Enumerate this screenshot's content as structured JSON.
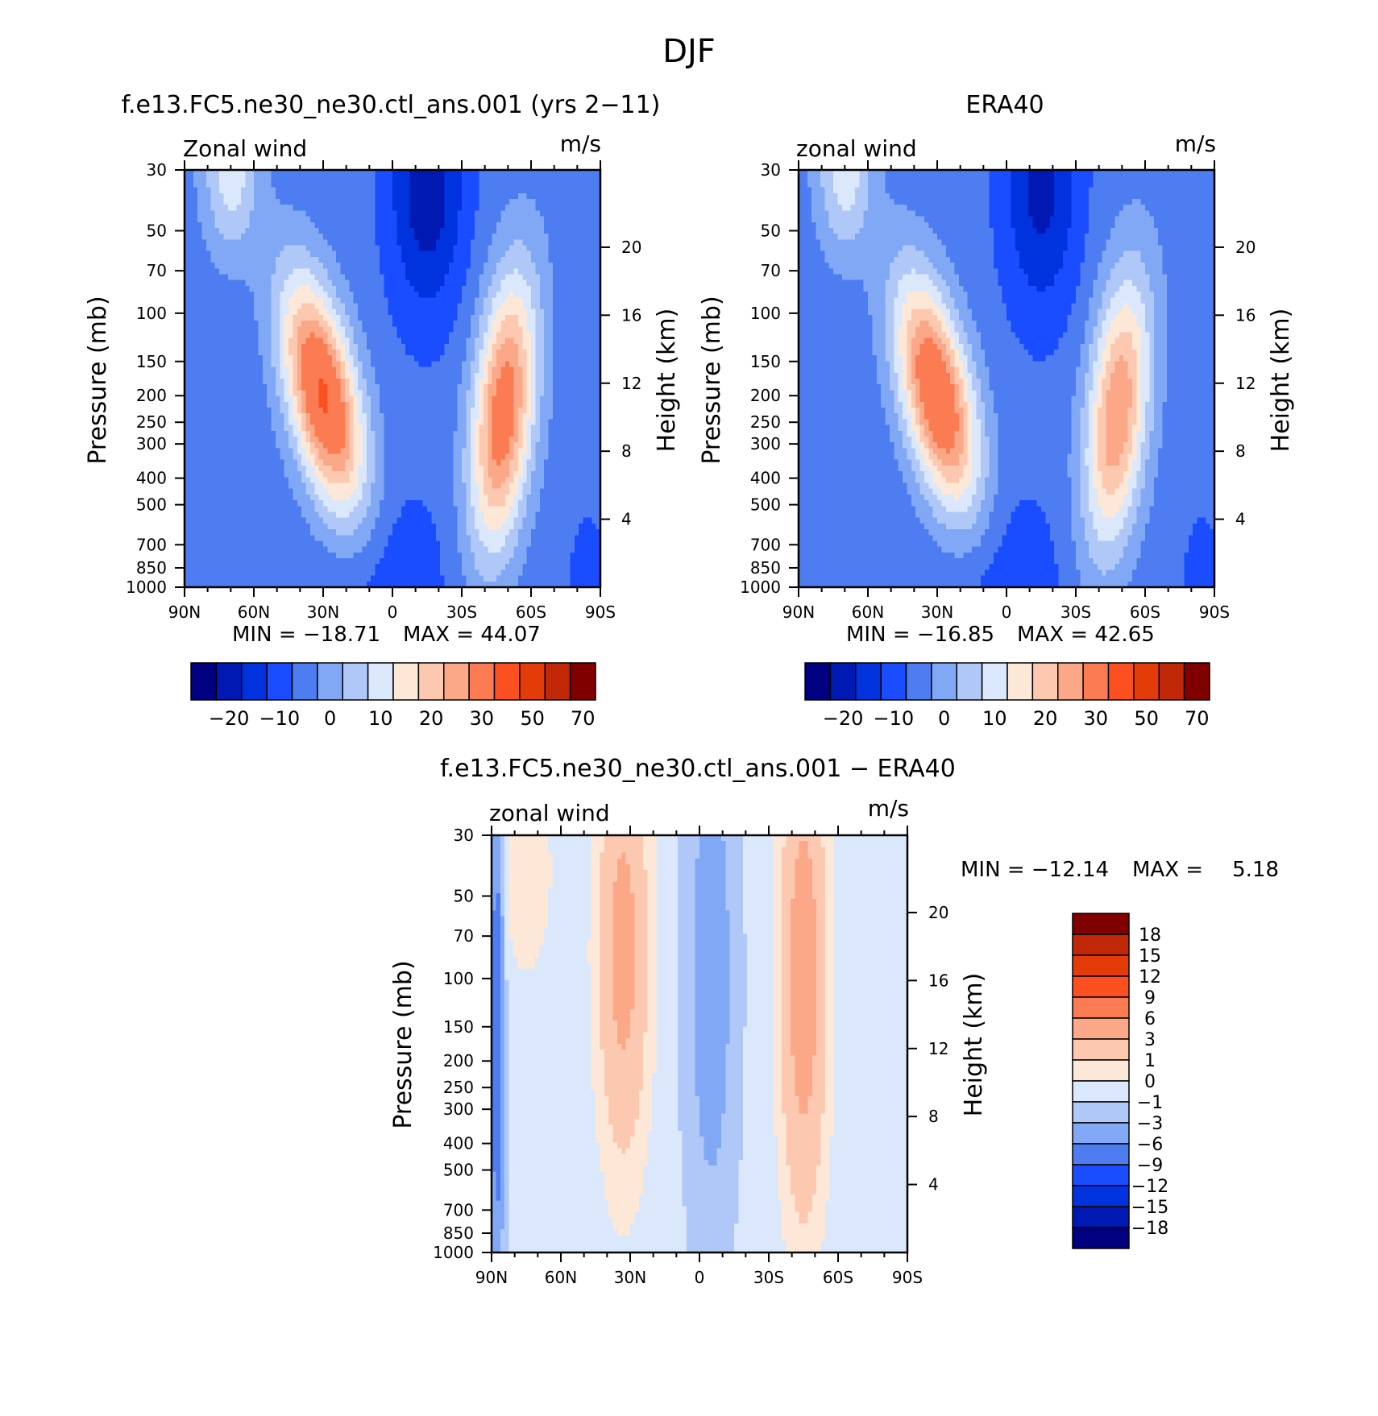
{
  "figure": {
    "title": "DJF",
    "colors": {
      "main_scale": [
        "#000080",
        "#0019b3",
        "#0033dd",
        "#1a4dff",
        "#4d7df0",
        "#80a8f5",
        "#b0c8f8",
        "#dbe8fb",
        "#fde8d8",
        "#fcc8b0",
        "#fba888",
        "#fb7c52",
        "#fd5020",
        "#e43c08",
        "#c02808",
        "#800000"
      ],
      "diff_scale": [
        "#000080",
        "#0019b3",
        "#0033dd",
        "#1a4dff",
        "#4d7df0",
        "#80a8f5",
        "#b0c8f8",
        "#dbe8fb",
        "#fde8d8",
        "#fcc8b0",
        "#fba888",
        "#fb7c52",
        "#fd5020",
        "#e43c08",
        "#c02808",
        "#800000"
      ]
    }
  },
  "chart_data": [
    {
      "type": "heatmap",
      "title": "f.e13.FC5.ne30_ne30.ctl_ans.001 (yrs 2−11)",
      "left_label": "Zonal wind",
      "right_label": "m/s",
      "ylabel": "Pressure (mb)",
      "ylabel_right": "Height (km)",
      "x_ticks": [
        "90N",
        "60N",
        "30N",
        "0",
        "30S",
        "60S",
        "90S"
      ],
      "x_range": [
        90,
        -90
      ],
      "y_ticks": [
        30,
        50,
        70,
        100,
        150,
        200,
        250,
        300,
        400,
        500,
        700,
        850,
        1000
      ],
      "y_range": [
        30,
        1000
      ],
      "y_scale": "log",
      "y_right_ticks": [
        20,
        16,
        12,
        8,
        4
      ],
      "min_label": "MIN = −18.71",
      "max_label": "MAX = 44.07",
      "min": -18.71,
      "max": 44.07,
      "colorbar": {
        "orientation": "horizontal",
        "levels": [
          -25,
          -20,
          -15,
          -10,
          -5,
          0,
          5,
          10,
          15,
          20,
          25,
          30,
          40,
          50,
          60,
          70
        ],
        "labels": [
          "−20",
          "−10",
          "0",
          "10",
          "20",
          "30",
          "50",
          "70"
        ]
      },
      "jets": [
        {
          "lat": 30,
          "p": 200,
          "max": 44
        },
        {
          "lat": -48,
          "p": 230,
          "max": 38
        }
      ],
      "easterly_min": {
        "lat": -15,
        "p": 35,
        "value": -18.7
      }
    },
    {
      "type": "heatmap",
      "title": "ERA40",
      "left_label": "zonal wind",
      "right_label": "m/s",
      "ylabel": "Pressure (mb)",
      "ylabel_right": "Height (km)",
      "x_ticks": [
        "90N",
        "60N",
        "30N",
        "0",
        "30S",
        "60S",
        "90S"
      ],
      "x_range": [
        90,
        -90
      ],
      "y_ticks": [
        30,
        50,
        70,
        100,
        150,
        200,
        250,
        300,
        400,
        500,
        700,
        850,
        1000
      ],
      "y_range": [
        30,
        1000
      ],
      "y_scale": "log",
      "y_right_ticks": [
        20,
        16,
        12,
        8,
        4
      ],
      "min_label": "MIN = −16.85",
      "max_label": "MAX = 42.65",
      "min": -16.85,
      "max": 42.65,
      "colorbar": {
        "orientation": "horizontal",
        "levels": [
          -25,
          -20,
          -15,
          -10,
          -5,
          0,
          5,
          10,
          15,
          20,
          25,
          30,
          40,
          50,
          60,
          70
        ],
        "labels": [
          "−20",
          "−10",
          "0",
          "10",
          "20",
          "30",
          "50",
          "70"
        ]
      },
      "jets": [
        {
          "lat": 30,
          "p": 200,
          "max": 42
        },
        {
          "lat": -48,
          "p": 230,
          "max": 33
        }
      ],
      "easterly_min": {
        "lat": -15,
        "p": 35,
        "value": -16.8
      }
    },
    {
      "type": "heatmap",
      "title": "f.e13.FC5.ne30_ne30.ctl_ans.001 − ERA40",
      "left_label": "zonal wind",
      "right_label": "m/s",
      "ylabel": "Pressure (mb)",
      "ylabel_right": "Height (km)",
      "x_ticks": [
        "90N",
        "60N",
        "30N",
        "0",
        "30S",
        "60S",
        "90S"
      ],
      "x_range": [
        90,
        -90
      ],
      "y_ticks": [
        30,
        50,
        70,
        100,
        150,
        200,
        250,
        300,
        400,
        500,
        700,
        850,
        1000
      ],
      "y_range": [
        30,
        1000
      ],
      "y_scale": "log",
      "y_right_ticks": [
        20,
        16,
        12,
        8,
        4
      ],
      "min_label": "MIN = −12.14",
      "max_label": "MAX =",
      "max_value_label": "5.18",
      "min": -12.14,
      "max": 5.18,
      "colorbar": {
        "orientation": "vertical",
        "levels": [
          -21,
          -18,
          -15,
          -12,
          -9,
          -6,
          -3,
          -1,
          0,
          1,
          3,
          6,
          9,
          12,
          15,
          18,
          21
        ],
        "labels": [
          "18",
          "15",
          "12",
          "9",
          "6",
          "3",
          "1",
          "0",
          "−1",
          "−3",
          "−6",
          "−9",
          "−12",
          "−15",
          "−18"
        ]
      }
    }
  ]
}
